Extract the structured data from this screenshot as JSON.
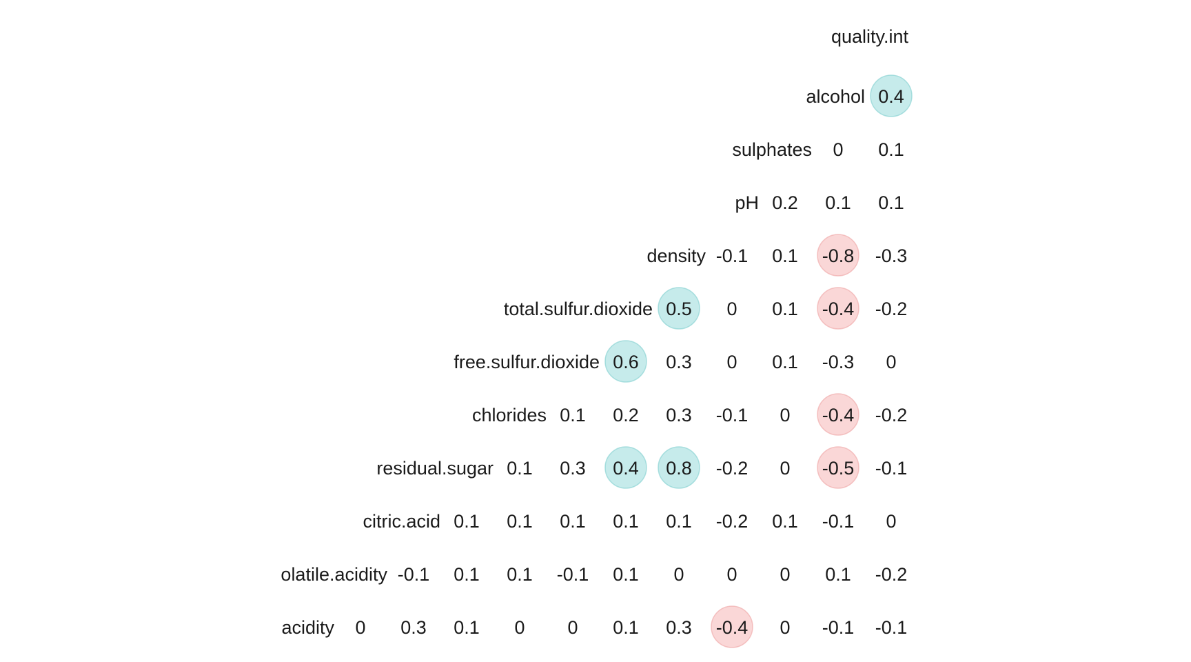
{
  "chart_data": {
    "type": "heatmap",
    "title": "",
    "xlabel": "",
    "ylabel": "",
    "legend": "none",
    "grid": false,
    "variables": [
      "acidity",
      "olatile.acidity",
      "citric.acid",
      "residual.sugar",
      "chlorides",
      "free.sulfur.dioxide",
      "total.sulfur.dioxide",
      "density",
      "pH",
      "sulphates",
      "alcohol",
      "quality.int"
    ],
    "rows": [
      {
        "name": "alcohol",
        "values": [
          "0.4"
        ]
      },
      {
        "name": "sulphates",
        "values": [
          "0",
          "0.1"
        ]
      },
      {
        "name": "pH",
        "values": [
          "0.2",
          "0.1",
          "0.1"
        ]
      },
      {
        "name": "density",
        "values": [
          "-0.1",
          "0.1",
          "-0.8",
          "-0.3"
        ]
      },
      {
        "name": "total.sulfur.dioxide",
        "values": [
          "0.5",
          "0",
          "0.1",
          "-0.4",
          "-0.2"
        ]
      },
      {
        "name": "free.sulfur.dioxide",
        "values": [
          "0.6",
          "0.3",
          "0",
          "0.1",
          "-0.3",
          "0"
        ]
      },
      {
        "name": "chlorides",
        "values": [
          "0.1",
          "0.2",
          "0.3",
          "-0.1",
          "0",
          "-0.4",
          "-0.2"
        ]
      },
      {
        "name": "residual.sugar",
        "values": [
          "0.1",
          "0.3",
          "0.4",
          "0.8",
          "-0.2",
          "0",
          "-0.5",
          "-0.1"
        ]
      },
      {
        "name": "citric.acid",
        "values": [
          "0.1",
          "0.1",
          "0.1",
          "0.1",
          "0.1",
          "-0.2",
          "0.1",
          "-0.1",
          "0"
        ]
      },
      {
        "name": "olatile.acidity",
        "values": [
          "-0.1",
          "0.1",
          "0.1",
          "-0.1",
          "0.1",
          "0",
          "0",
          "0",
          "0.1",
          "-0.2"
        ]
      },
      {
        "name": "acidity",
        "values": [
          "0",
          "0.3",
          "0.1",
          "0",
          "0",
          "0.1",
          "0.3",
          "-0.4",
          "0",
          "-0.1",
          "-0.1"
        ]
      }
    ],
    "highlight_threshold": 0.4,
    "colors": {
      "positive": "#a8e0e0",
      "negative": "#f7c1c1",
      "positive_edge": "#7fcfcf",
      "negative_edge": "#efa3a3",
      "text": "#1a1a1a"
    }
  }
}
